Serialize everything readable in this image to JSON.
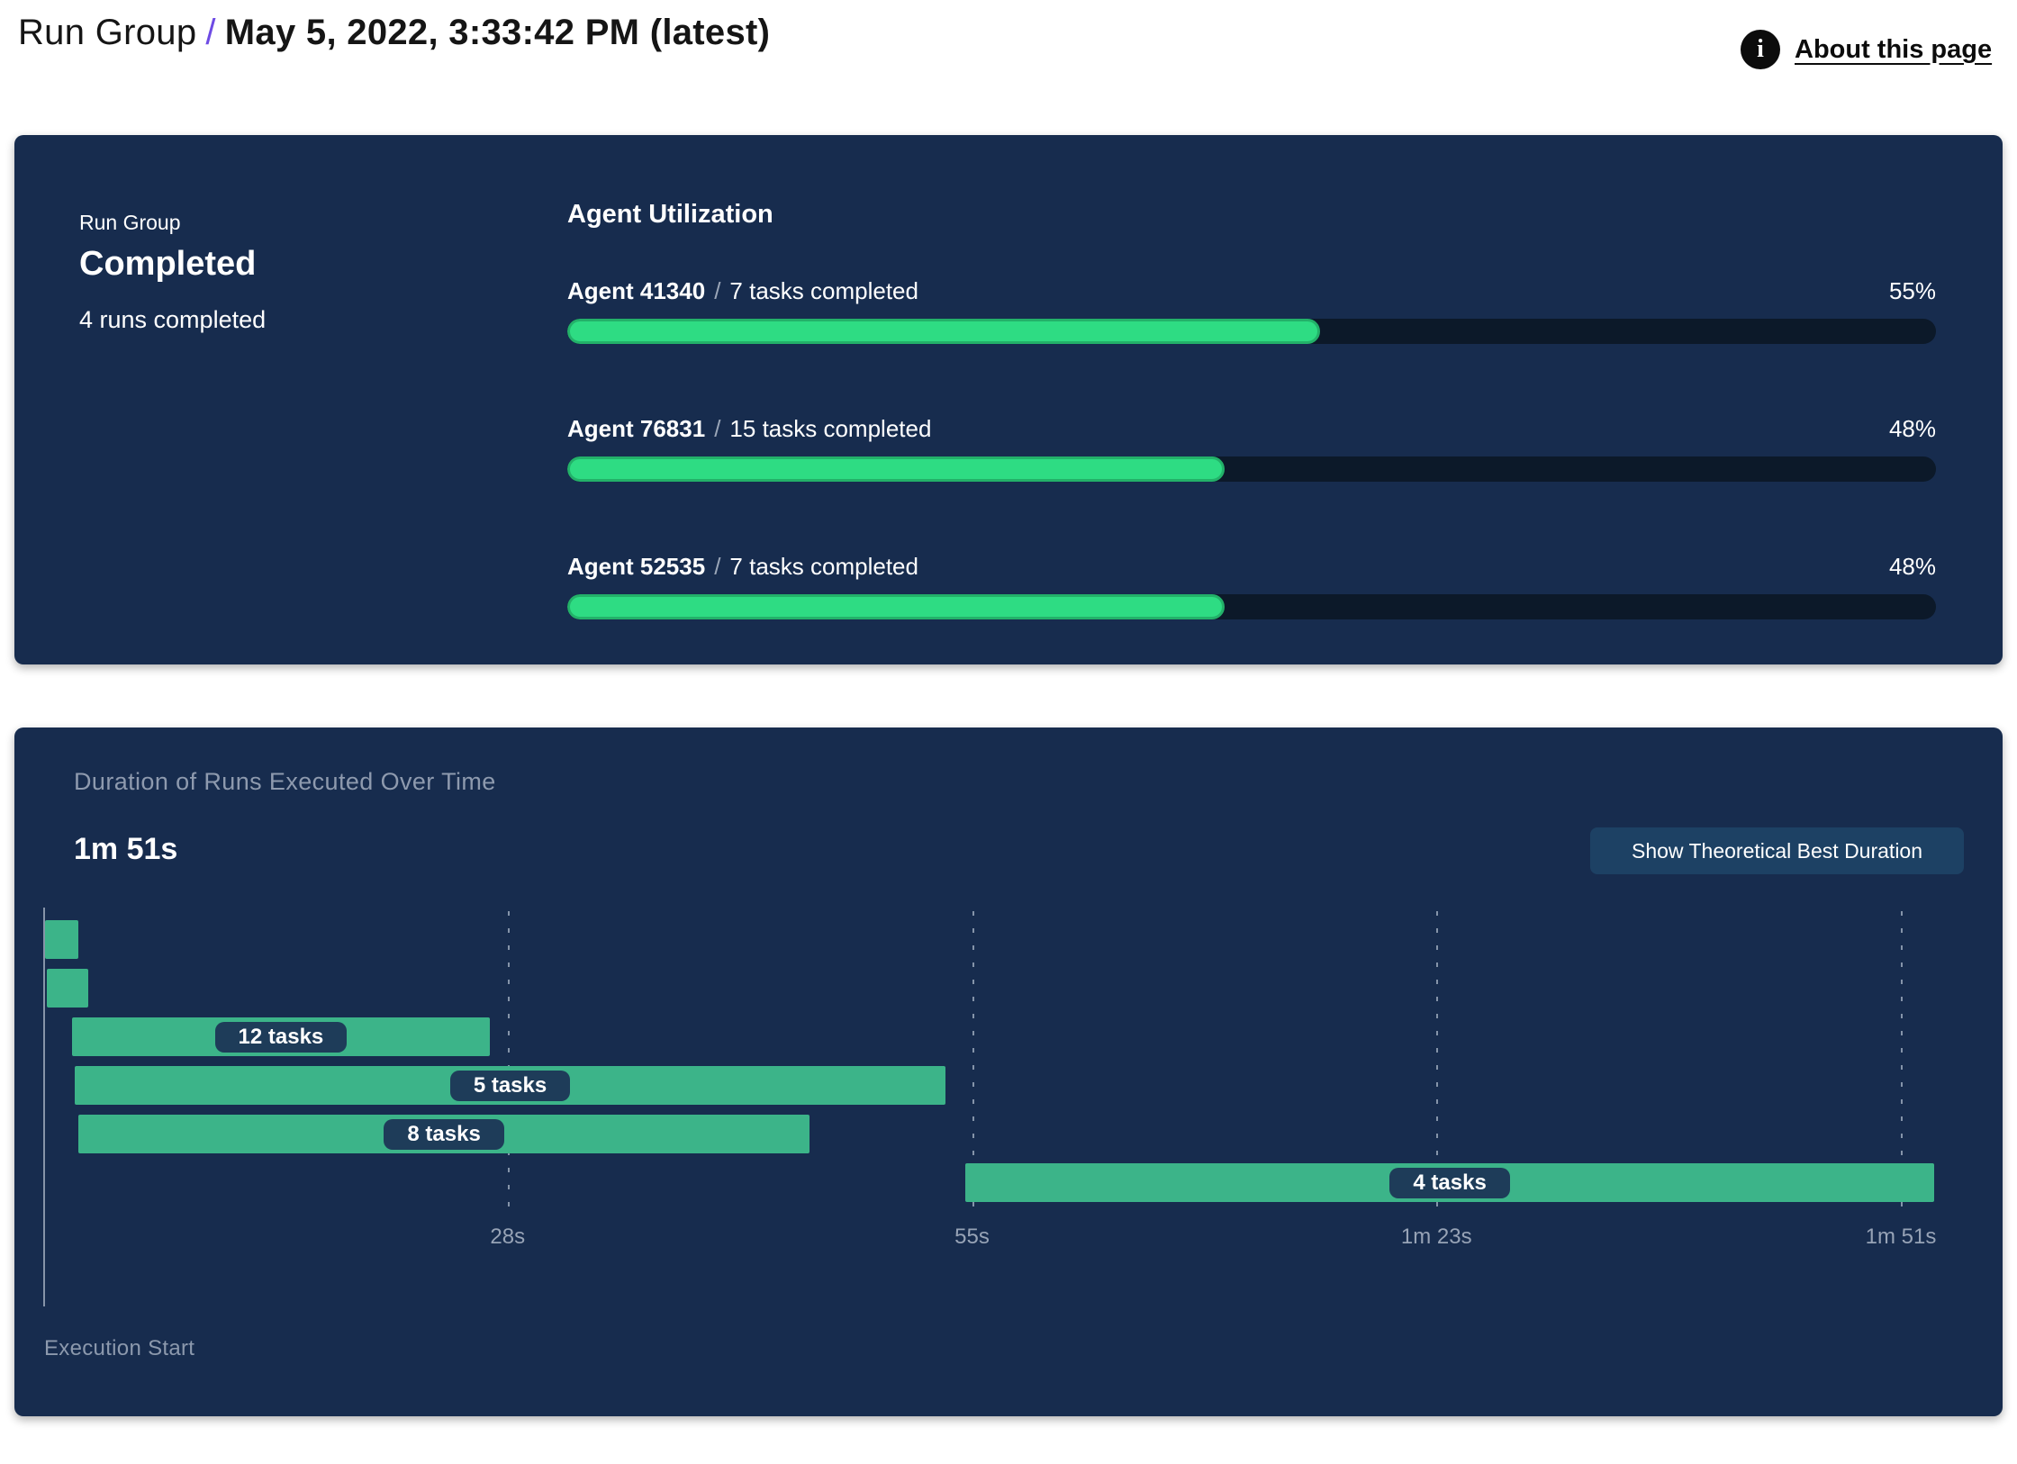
{
  "header": {
    "breadcrumb": "Run Group",
    "separator": "/",
    "title": "May 5, 2022, 3:33:42 PM (latest)",
    "about_link": "About this page",
    "info_icon": "info-icon"
  },
  "summary_panel": {
    "kicker": "Run Group",
    "status": "Completed",
    "subtitle": "4 runs completed",
    "section_title": "Agent Utilization",
    "agent_separator": "/",
    "agents": [
      {
        "name": "Agent 41340",
        "tasks": "7 tasks completed",
        "percent": "55%",
        "value": 55
      },
      {
        "name": "Agent 76831",
        "tasks": "15 tasks completed",
        "percent": "48%",
        "value": 48
      },
      {
        "name": "Agent 52535",
        "tasks": "7 tasks completed",
        "percent": "48%",
        "value": 48
      }
    ]
  },
  "duration_panel": {
    "title": "Duration of Runs Executed Over Time",
    "total_duration": "1m 51s",
    "button_label": "Show Theoretical Best Duration",
    "axis_label": "Execution Start"
  },
  "chart_data": {
    "type": "gantt",
    "title": "Duration of Runs Executed Over Time",
    "total_duration_label": "1m 51s",
    "total_duration_s": 111,
    "x_max_s": 113,
    "x_axis_origin_label": "Execution Start",
    "grid": true,
    "x_ticks": [
      {
        "s": 27.75,
        "label": "28s"
      },
      {
        "s": 55.5,
        "label": "55s"
      },
      {
        "s": 83.25,
        "label": "1m 23s"
      },
      {
        "s": 111,
        "label": "1m 51s"
      }
    ],
    "bars": [
      {
        "start_s": 0.1,
        "end_s": 2.1,
        "label": ""
      },
      {
        "start_s": 0.2,
        "end_s": 2.7,
        "label": ""
      },
      {
        "start_s": 1.7,
        "end_s": 26.7,
        "label": "12 tasks"
      },
      {
        "start_s": 1.9,
        "end_s": 53.9,
        "label": "5 tasks"
      },
      {
        "start_s": 2.1,
        "end_s": 45.8,
        "label": "8 tasks"
      },
      {
        "start_s": 55.1,
        "end_s": 113,
        "label": "4 tasks"
      }
    ]
  },
  "colors": {
    "panel_navy": "#172C4E",
    "progress_track": "#0C1929",
    "progress_fill": "#2EDC83",
    "progress_fill_border": "#23B169",
    "gantt_green": "#3CB489",
    "badge_navy": "#1E3C59",
    "button_navy": "#1D4164",
    "muted_text": "#8E9AAE",
    "accent_purple": "#6E4BE4"
  }
}
